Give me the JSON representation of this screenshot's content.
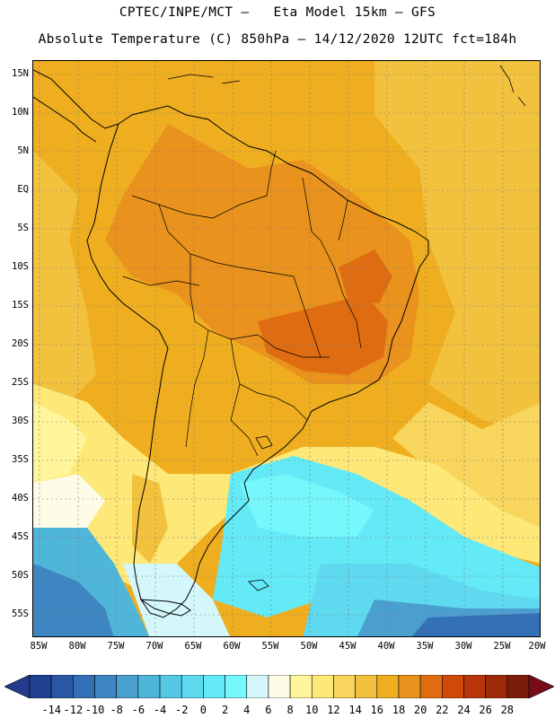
{
  "header": {
    "line1": "CPTEC/INPE/MCT –   Eta Model 15km – GFS",
    "line2": "Absolute Temperature (C) 850hPa – 14/12/2020 12UTC fct=184h"
  },
  "map": {
    "region": "South America",
    "lat_labels": [
      "15N",
      "10N",
      "5N",
      "EQ",
      "5S",
      "10S",
      "15S",
      "20S",
      "25S",
      "30S",
      "35S",
      "40S",
      "45S",
      "50S",
      "55S"
    ],
    "lon_labels": [
      "85W",
      "80W",
      "75W",
      "70W",
      "65W",
      "60W",
      "55W",
      "50W",
      "45W",
      "40W",
      "35W",
      "30W",
      "25W",
      "20W"
    ],
    "lat_range": [
      15,
      -55
    ],
    "lon_range": [
      -85,
      -20
    ]
  },
  "colorbar": {
    "labels": [
      "-14",
      "-12",
      "-10",
      "-8",
      "-6",
      "-4",
      "-2",
      "0",
      "2",
      "4",
      "6",
      "8",
      "10",
      "12",
      "14",
      "16",
      "18",
      "20",
      "22",
      "24",
      "26",
      "28"
    ],
    "colors": [
      "#1f3f8f",
      "#2a57a3",
      "#3370b5",
      "#3e86c2",
      "#4b9fcf",
      "#4fb5d9",
      "#55c8e4",
      "#5fd9ef",
      "#64e9f6",
      "#76f7fb",
      "#d4f7fb",
      "#fefce6",
      "#fff59a",
      "#fde878",
      "#f8d55c",
      "#f2c23f",
      "#efae1f",
      "#e9921d",
      "#e06c11",
      "#cf4a09",
      "#b8360a",
      "#9d2a0b",
      "#7b1d0b"
    ],
    "end_low": "#243a8a",
    "end_high": "#780b18"
  }
}
